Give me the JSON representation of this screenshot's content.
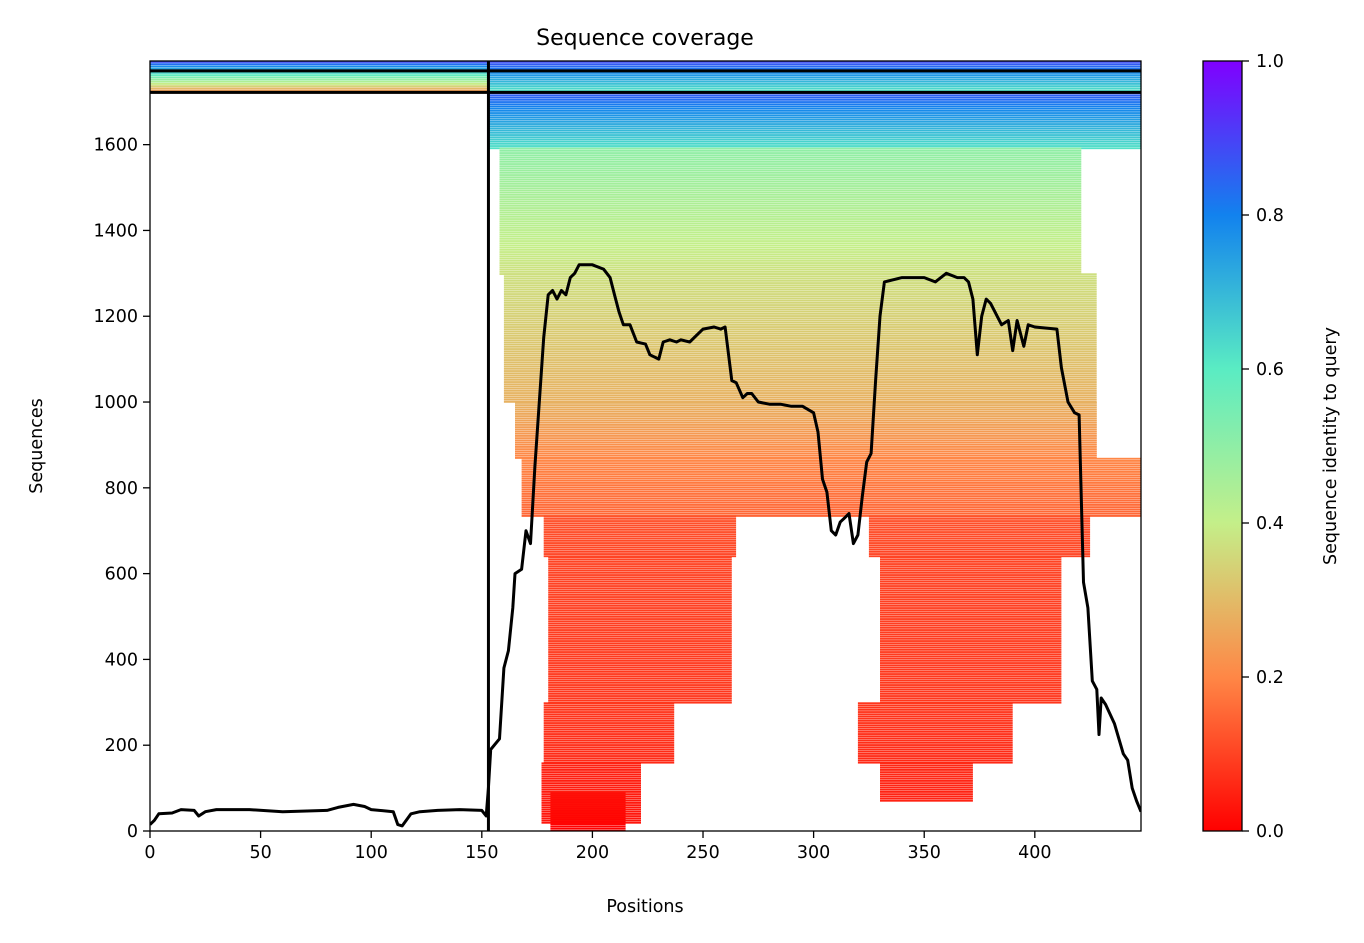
{
  "chart_data": {
    "type": "heatmap",
    "title": "Sequence coverage",
    "xlabel": "Positions",
    "ylabel": "Sequences",
    "xlim": [
      0,
      448
    ],
    "ylim": [
      0,
      1795
    ],
    "x_ticks": [
      0,
      50,
      100,
      150,
      200,
      250,
      300,
      350,
      400
    ],
    "y_ticks": [
      0,
      200,
      400,
      600,
      800,
      1000,
      1200,
      1400,
      1600
    ],
    "colorbar": {
      "label": "Sequence identity to query",
      "range": [
        0,
        1
      ],
      "ticks": [
        "0.0",
        "0.2",
        "0.4",
        "0.6",
        "0.8",
        "1.0"
      ],
      "colormap": "rainbow_r",
      "colors": [
        "#ff0000",
        "#ff8746",
        "#c4ef89",
        "#5aecc3",
        "#1282ee",
        "#8000ff"
      ]
    },
    "separators": {
      "vertical_x": [
        153
      ],
      "horizontal_y": [
        1722,
        1772
      ]
    },
    "blocks": [
      {
        "x0": 0,
        "x1": 153,
        "y0": 1722,
        "y1": 1795,
        "identity_top": 0.88,
        "identity_bottom": 0.2
      },
      {
        "x0": 153,
        "x1": 448,
        "y0": 1722,
        "y1": 1795,
        "identity_top": 0.88,
        "identity_bottom": 0.6
      },
      {
        "x0": 153,
        "x1": 448,
        "y0": 1593,
        "y1": 1722,
        "identity_top": 0.86,
        "identity_bottom": 0.62
      },
      {
        "x0": 158,
        "x1": 421,
        "y0": 1300,
        "y1": 1593,
        "identity_top": 0.5,
        "identity_bottom": 0.37
      },
      {
        "x0": 160,
        "x1": 428,
        "y0": 1000,
        "y1": 1300,
        "identity_top": 0.37,
        "identity_bottom": 0.28
      },
      {
        "x0": 165,
        "x1": 428,
        "y0": 870,
        "y1": 1000,
        "identity_top": 0.28,
        "identity_bottom": 0.2
      },
      {
        "x0": 168,
        "x1": 448,
        "y0": 735,
        "y1": 870,
        "identity_top": 0.2,
        "identity_bottom": 0.15
      },
      {
        "x0": 178,
        "x1": 265,
        "y0": 640,
        "y1": 735,
        "identity_top": 0.12,
        "identity_bottom": 0.1
      },
      {
        "x0": 325,
        "x1": 425,
        "y0": 640,
        "y1": 735,
        "identity_top": 0.12,
        "identity_bottom": 0.1
      },
      {
        "x0": 180,
        "x1": 263,
        "y0": 300,
        "y1": 640,
        "identity_top": 0.1,
        "identity_bottom": 0.08
      },
      {
        "x0": 330,
        "x1": 412,
        "y0": 300,
        "y1": 640,
        "identity_top": 0.1,
        "identity_bottom": 0.08
      },
      {
        "x0": 178,
        "x1": 237,
        "y0": 160,
        "y1": 300,
        "identity_top": 0.08,
        "identity_bottom": 0.06
      },
      {
        "x0": 320,
        "x1": 390,
        "y0": 160,
        "y1": 300,
        "identity_top": 0.08,
        "identity_bottom": 0.06
      },
      {
        "x0": 177,
        "x1": 222,
        "y0": 20,
        "y1": 160,
        "identity_top": 0.05,
        "identity_bottom": 0.03
      },
      {
        "x0": 330,
        "x1": 372,
        "y0": 70,
        "y1": 160,
        "identity_top": 0.06,
        "identity_bottom": 0.05
      },
      {
        "x0": 181,
        "x1": 215,
        "y0": 0,
        "y1": 90,
        "identity_top": 0.02,
        "identity_bottom": 0.0
      }
    ],
    "coverage_line": {
      "x": [
        0,
        2,
        4,
        10,
        14,
        20,
        22,
        25,
        30,
        45,
        60,
        80,
        85,
        92,
        97,
        100,
        110,
        112,
        114,
        118,
        122,
        130,
        140,
        150,
        152,
        153,
        154,
        158,
        160,
        162,
        164,
        165,
        168,
        170,
        172,
        174,
        176,
        178,
        180,
        182,
        184,
        186,
        188,
        190,
        192,
        194,
        200,
        205,
        208,
        210,
        212,
        214,
        217,
        220,
        224,
        226,
        230,
        232,
        235,
        238,
        240,
        244,
        250,
        255,
        258,
        260,
        263,
        265,
        268,
        270,
        272,
        275,
        280,
        285,
        290,
        295,
        300,
        302,
        304,
        306,
        308,
        310,
        312,
        314,
        316,
        318,
        320,
        322,
        324,
        326,
        328,
        330,
        332,
        340,
        350,
        355,
        360,
        365,
        368,
        370,
        372,
        374,
        376,
        378,
        380,
        385,
        388,
        390,
        392,
        395,
        397,
        400,
        410,
        412,
        415,
        418,
        420,
        422,
        424,
        426,
        428,
        429,
        430,
        432,
        436,
        440,
        442,
        444,
        446,
        448
      ],
      "y": [
        15,
        25,
        40,
        42,
        50,
        48,
        35,
        45,
        50,
        50,
        45,
        48,
        55,
        62,
        57,
        50,
        45,
        15,
        12,
        40,
        45,
        48,
        50,
        48,
        35,
        100,
        190,
        215,
        380,
        420,
        520,
        600,
        610,
        700,
        670,
        850,
        1000,
        1150,
        1250,
        1260,
        1240,
        1260,
        1250,
        1290,
        1300,
        1320,
        1320,
        1310,
        1290,
        1250,
        1210,
        1180,
        1180,
        1140,
        1135,
        1110,
        1100,
        1140,
        1145,
        1140,
        1145,
        1140,
        1170,
        1175,
        1170,
        1175,
        1050,
        1045,
        1010,
        1020,
        1020,
        1000,
        995,
        995,
        990,
        990,
        975,
        930,
        820,
        790,
        700,
        690,
        720,
        730,
        740,
        670,
        690,
        780,
        860,
        880,
        1050,
        1200,
        1280,
        1290,
        1290,
        1280,
        1300,
        1290,
        1290,
        1280,
        1240,
        1110,
        1200,
        1240,
        1230,
        1180,
        1190,
        1120,
        1190,
        1130,
        1180,
        1175,
        1170,
        1080,
        1000,
        975,
        970,
        580,
        520,
        350,
        330,
        225,
        310,
        295,
        250,
        180,
        165,
        100,
        70,
        45
      ]
    }
  }
}
